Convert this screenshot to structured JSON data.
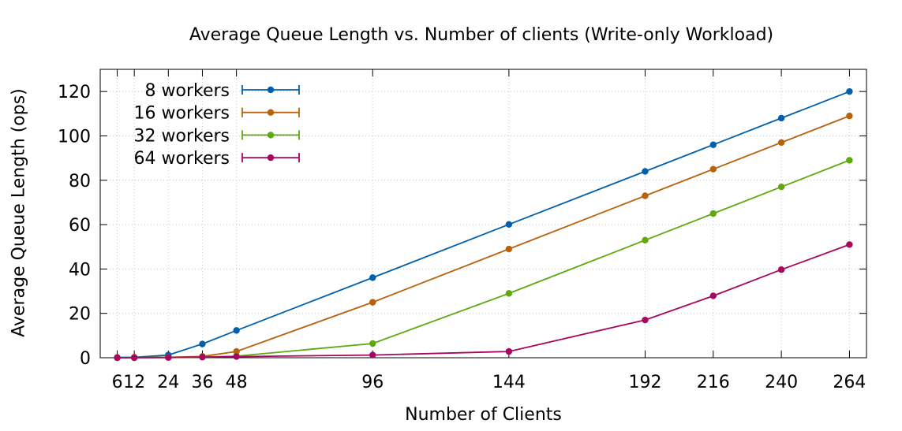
{
  "chart_data": {
    "type": "line",
    "title": "Average Queue Length vs. Number of clients (Write-only Workload)",
    "xlabel": "Number of Clients",
    "ylabel": "Average Queue Length (ops)",
    "x": [
      6,
      12,
      24,
      36,
      48,
      96,
      144,
      192,
      216,
      240,
      264
    ],
    "x_tick_labels": [
      "6",
      "12",
      "24",
      "36",
      "48",
      "96",
      "144",
      "192",
      "216",
      "240",
      "264"
    ],
    "xlim": [
      0,
      270
    ],
    "ylim": [
      0,
      130
    ],
    "y_ticks": [
      0,
      20,
      40,
      60,
      80,
      100,
      120
    ],
    "grid": true,
    "error_bars": true,
    "legend_position": "top-left",
    "series": [
      {
        "name": "8 workers",
        "color": "#0060ad",
        "values": [
          0.1,
          0.2,
          1.2,
          6.2,
          12.3,
          36.1,
          60.1,
          84.0,
          96.0,
          108.0,
          120.0
        ]
      },
      {
        "name": "16 workers",
        "color": "#b8620b",
        "values": [
          0.0,
          0.1,
          0.2,
          0.6,
          2.8,
          25.0,
          49.0,
          73.0,
          85.0,
          97.0,
          109.0
        ]
      },
      {
        "name": "32 workers",
        "color": "#5fa80e",
        "values": [
          0.0,
          0.0,
          0.1,
          0.3,
          0.7,
          6.4,
          29.0,
          53.0,
          65.0,
          77.0,
          89.0
        ]
      },
      {
        "name": "64 workers",
        "color": "#a8075f",
        "values": [
          0.0,
          0.0,
          0.1,
          0.3,
          0.5,
          1.2,
          2.8,
          17.0,
          27.9,
          39.7,
          51.0
        ]
      }
    ]
  }
}
